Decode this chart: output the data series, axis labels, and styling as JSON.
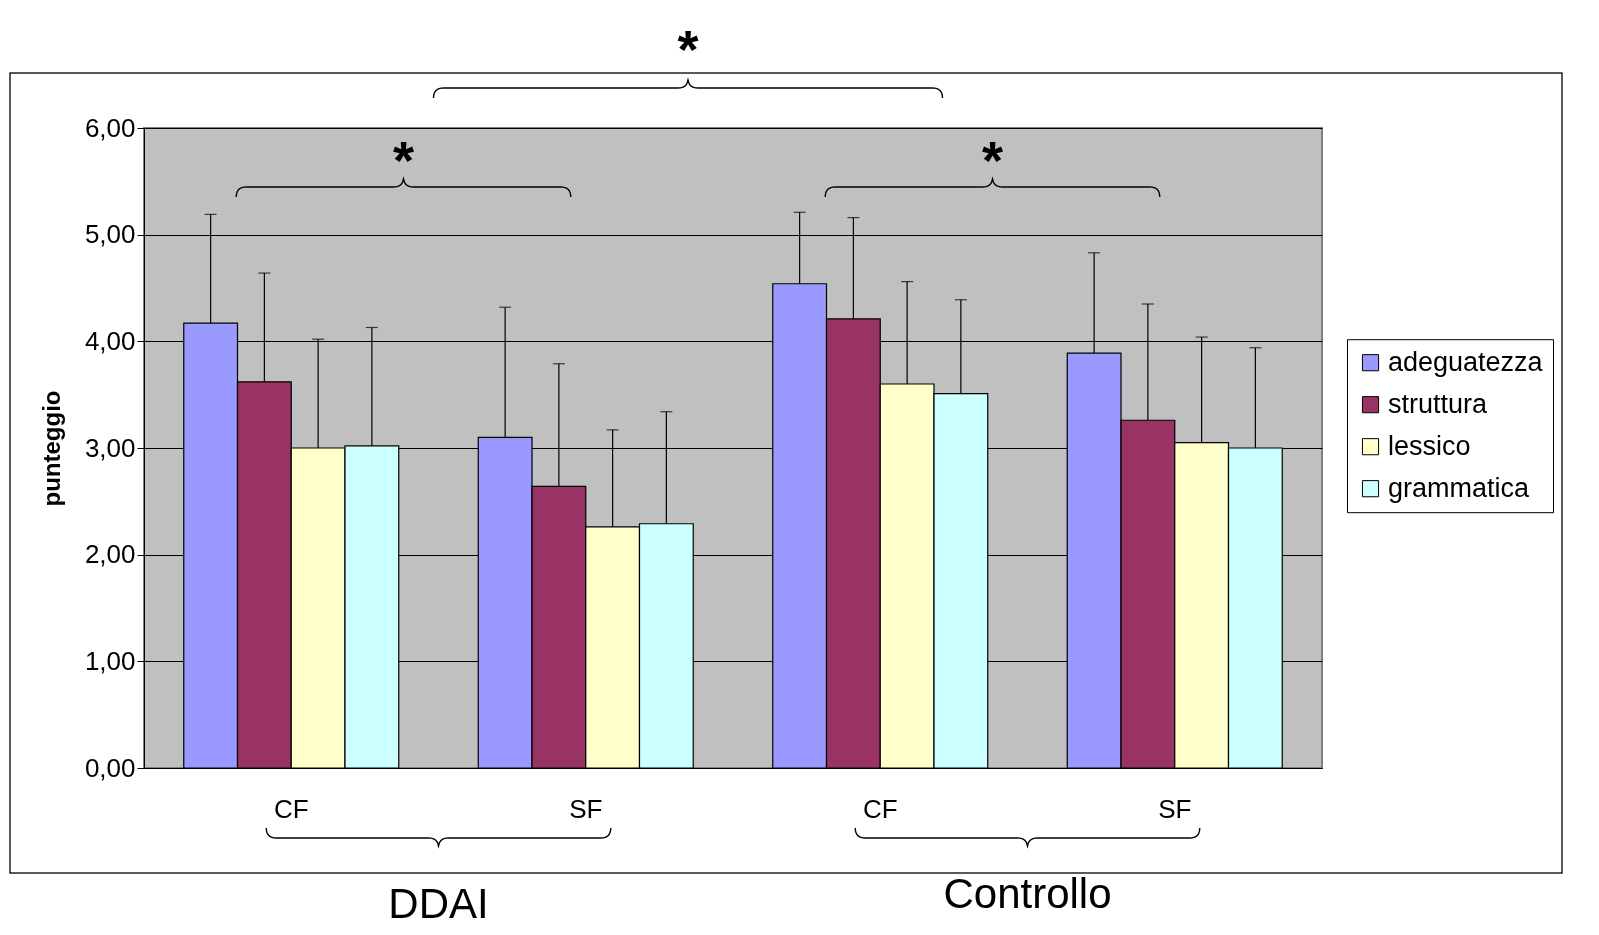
{
  "chart_data": {
    "type": "bar",
    "ylabel": "punteggio",
    "categories": [
      "CF",
      "SF",
      "CF",
      "SF"
    ],
    "series": [
      {
        "name": "adeguatezza",
        "color": "#9999ff",
        "values": [
          4.17,
          3.1,
          4.54,
          3.89
        ],
        "errors": [
          [
            4.17,
            5.19
          ],
          [
            3.1,
            4.32
          ],
          [
            4.54,
            5.21
          ],
          [
            3.89,
            4.83
          ]
        ]
      },
      {
        "name": "struttura",
        "color": "#993366",
        "values": [
          3.62,
          2.64,
          4.21,
          3.26
        ],
        "errors": [
          [
            3.62,
            4.64
          ],
          [
            2.64,
            3.79
          ],
          [
            4.21,
            5.16
          ],
          [
            3.26,
            4.35
          ]
        ]
      },
      {
        "name": "lessico",
        "color": "#ffffcc",
        "values": [
          3.0,
          2.26,
          3.6,
          3.05
        ],
        "errors": [
          [
            3.0,
            4.02
          ],
          [
            2.26,
            3.17
          ],
          [
            3.6,
            4.56
          ],
          [
            3.05,
            4.04
          ]
        ]
      },
      {
        "name": "grammatica",
        "color": "#ccffff",
        "values": [
          3.02,
          2.29,
          3.51,
          3.0
        ],
        "errors": [
          [
            3.02,
            4.13
          ],
          [
            2.29,
            3.34
          ],
          [
            3.51,
            4.39
          ],
          [
            3.0,
            3.94
          ]
        ]
      }
    ],
    "ylim": [
      0,
      6
    ],
    "yticks": [
      {
        "value": 0,
        "label": "0,00"
      },
      {
        "value": 1,
        "label": "1,00"
      },
      {
        "value": 2,
        "label": "2,00"
      },
      {
        "value": 3,
        "label": "3,00"
      },
      {
        "value": 4,
        "label": "4,00"
      },
      {
        "value": 5,
        "label": "5,00"
      },
      {
        "value": 6,
        "label": "6,00"
      }
    ],
    "grid": "y",
    "legend": "right",
    "annotations": [
      "*",
      "*",
      "*",
      "DDAI",
      "Controllo"
    ]
  }
}
